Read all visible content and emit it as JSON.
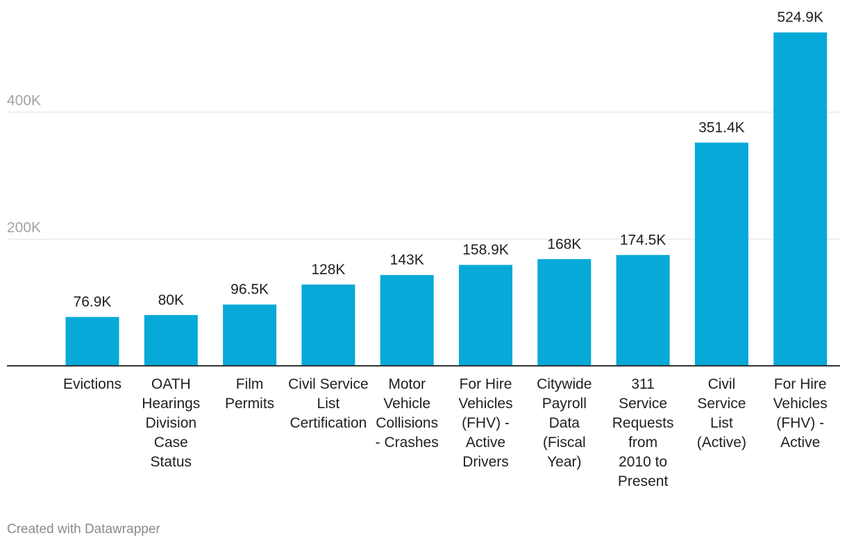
{
  "chart_data": {
    "type": "bar",
    "categories": [
      [
        "Evictions"
      ],
      [
        "OATH",
        "Hearings",
        "Division",
        "Case",
        "Status"
      ],
      [
        "Film",
        "Permits"
      ],
      [
        "Civil Service",
        "List",
        "Certification"
      ],
      [
        "Motor",
        "Vehicle",
        "Collisions",
        "- Crashes"
      ],
      [
        "For Hire",
        "Vehicles",
        "(FHV) -",
        "Active",
        "Drivers"
      ],
      [
        "Citywide",
        "Payroll",
        "Data",
        "(Fiscal",
        "Year)"
      ],
      [
        "311",
        "Service",
        "Requests",
        "from",
        "2010 to",
        "Present"
      ],
      [
        "Civil",
        "Service",
        "List",
        "(Active)"
      ],
      [
        "For Hire",
        "Vehicles",
        "(FHV) -",
        "Active"
      ]
    ],
    "values": [
      76900,
      80000,
      96500,
      128000,
      143000,
      158900,
      168000,
      174500,
      351400,
      524900
    ],
    "value_labels": [
      "76.9K",
      "80K",
      "96.5K",
      "128K",
      "143K",
      "158.9K",
      "168K",
      "174.5K",
      "351.4K",
      "524.9K"
    ],
    "yticks": [
      200000,
      400000
    ],
    "ytick_labels": [
      "200K",
      "400K"
    ],
    "ylim": [
      0,
      570000
    ],
    "grid": true,
    "bar_color": "#06a9d8"
  },
  "footer": {
    "credit": "Created with Datawrapper"
  }
}
